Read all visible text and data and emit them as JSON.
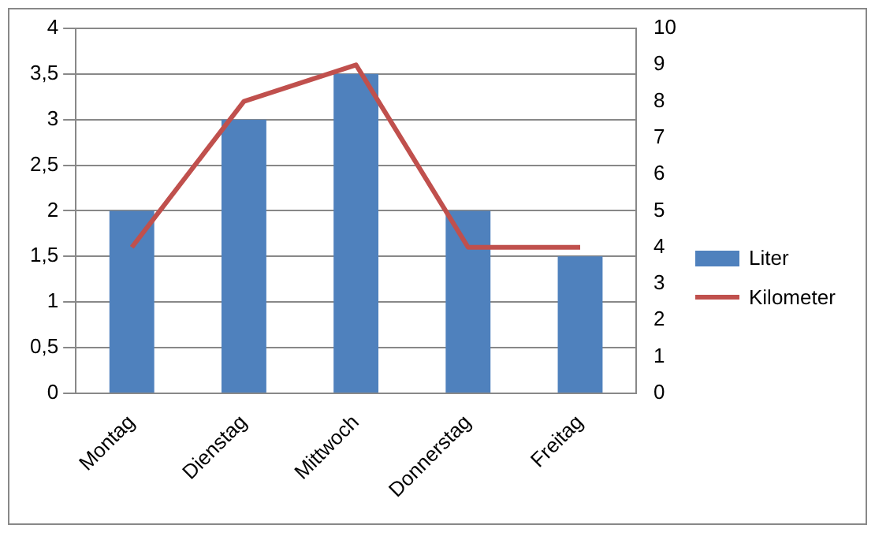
{
  "chart_data": {
    "type": "bar",
    "categories": [
      "Montag",
      "Dienstag",
      "Mittwoch",
      "Donnerstag",
      "Freitag"
    ],
    "series": [
      {
        "name": "Liter",
        "color": "#4f81bd",
        "values": [
          2,
          3,
          3.5,
          2,
          1.5
        ]
      },
      {
        "name": "Kilometer",
        "type": "line",
        "axis": "y2",
        "color": "#c0504d",
        "values": [
          4,
          8,
          9,
          4,
          4
        ]
      }
    ],
    "ylim": [
      0,
      4
    ],
    "yticks": [
      0,
      {
        "value": 0.5,
        "label": "0,5"
      },
      1,
      {
        "value": 1.5,
        "label": "1,5"
      },
      2,
      {
        "value": 2.5,
        "label": "2,5"
      },
      3,
      {
        "value": 3.5,
        "label": "3,5"
      },
      4
    ],
    "y2lim": [
      0,
      10
    ],
    "y2ticks": [
      0,
      1,
      2,
      3,
      4,
      5,
      6,
      7,
      8,
      9,
      10
    ],
    "grid": "y",
    "legend": "right",
    "marker": "none",
    "line_style": "solid"
  }
}
